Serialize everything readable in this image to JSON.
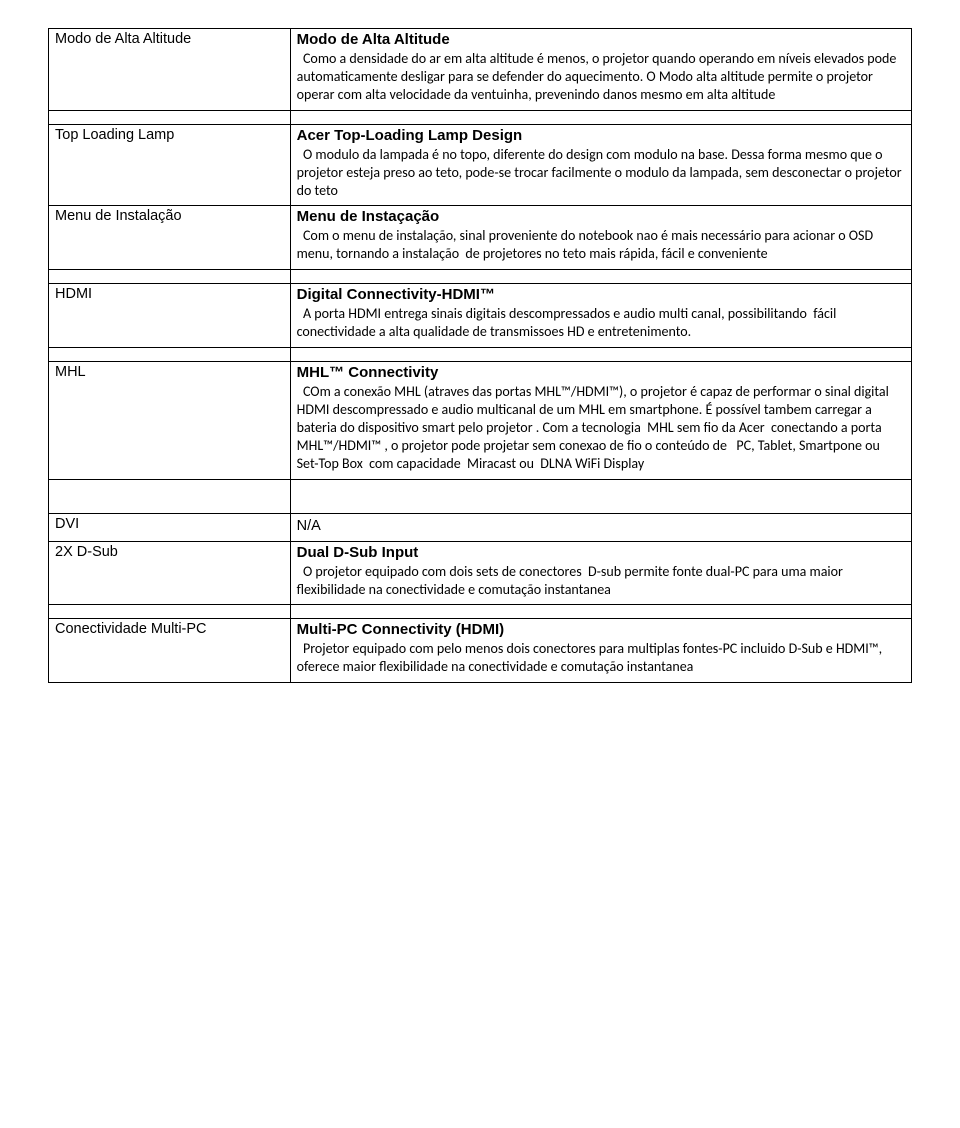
{
  "rows": [
    {
      "label": "Modo de Alta Altitude",
      "heading": "Modo de Alta Altitude",
      "body": "  Como a densidade do ar em alta altitude é menos, o projetor quando operando em níveis elevados pode automaticamente desligar para se defender do aquecimento. O Modo alta altitude permite o projetor operar com alta velocidade da ventuinha, prevenindo danos mesmo em alta altitude"
    },
    {
      "label": "Top Loading Lamp",
      "heading": "Acer Top-Loading Lamp Design",
      "body": "  O modulo da lampada é no topo, diferente do design com modulo na base. Dessa forma mesmo que o projetor esteja preso ao teto, pode-se trocar facilmente o modulo da lampada, sem desconectar o projetor do teto"
    },
    {
      "label": "Menu de Instalação",
      "heading": "Menu de Instaçação",
      "body": "  Com o menu de instalação, sinal proveniente do notebook nao é mais necessário para acionar o OSD menu, tornando a instalação  de projetores no teto mais rápida, fácil e conveniente"
    },
    {
      "label": "HDMI",
      "heading": "Digital Connectivity-HDMI™",
      "body": "  A porta HDMI entrega sinais digitais descompressados e audio multi canal, possibilitando  fácil conectividade a alta qualidade de transmissoes HD e entretenimento."
    },
    {
      "label": "MHL",
      "heading": "MHL™ Connectivity",
      "body": "  COm a conexão MHL (atraves das portas MHL™/HDMI™), o projetor é capaz de performar o sinal digital  HDMI descompressado e audio multicanal de um MHL em smartphone. É possível tambem carregar a bateria do dispositivo smart pelo projetor . Com a tecnologia  MHL sem fio da Acer  conectando a porta MHL™/HDMI™ , o projetor pode projetar sem conexao de fio o conteúdo de   PC, Tablet, Smartpone ou  Set-Top Box  com capacidade  Miracast ou  DLNA WiFi Display"
    },
    {
      "label": "DVI",
      "na": "N/A"
    },
    {
      "label": "2X D-Sub",
      "heading": "Dual D-Sub Input",
      "body": "  O projetor equipado com dois sets de conectores  D-sub permite fonte dual-PC para uma maior flexibilidade na conectividade e comutação instantanea"
    },
    {
      "label": "Conectividade Multi-PC",
      "heading": "Multi-PC Connectivity (HDMI)",
      "body": "  Projetor equipado com pelo menos dois conectores para multiplas fontes-PC incluido D-Sub e HDMI™, oferece maior flexibilidade na conectividade e comutação instantanea"
    }
  ]
}
